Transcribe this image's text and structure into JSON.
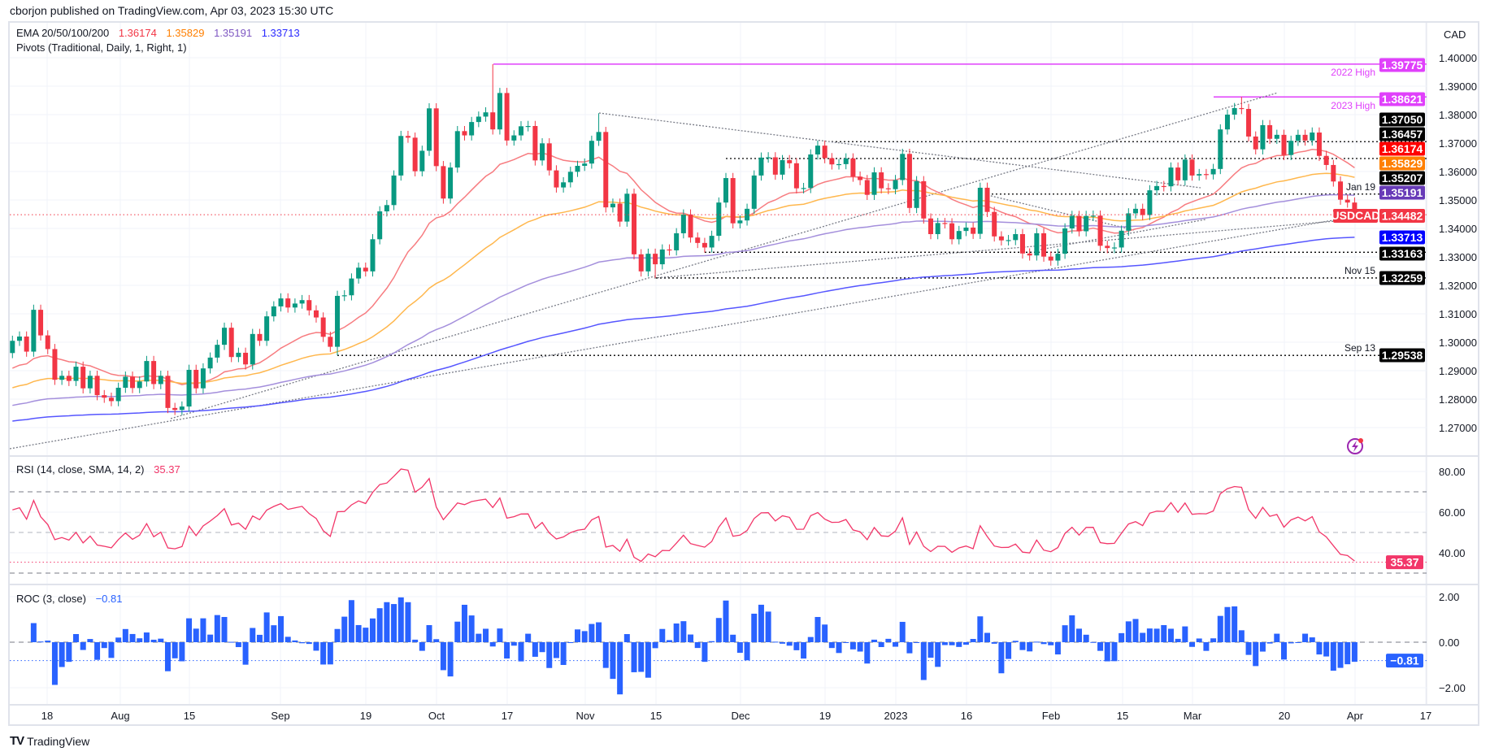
{
  "header": {
    "published": "cborjon published on TradingView.com, Apr 03, 2023 15:30 UTC"
  },
  "legend": {
    "ema_label": "EMA 20/50/100/200",
    "ema_values": [
      "1.36174",
      "1.35829",
      "1.35191",
      "1.33713"
    ],
    "pivots_label": "Pivots (Traditional, Daily, 1, Right, 1)",
    "rsi_label": "RSI (14, close, SMA, 14, 2)",
    "rsi_value": "35.37",
    "roc_label": "ROC (3, close)",
    "roc_value": "−0.81"
  },
  "symbol": "USDCAD",
  "currency": "CAD",
  "logo": "TradingView",
  "colors": {
    "up": "#089981",
    "down": "#f23645",
    "ema20": "#f77c80",
    "ema50": "#ffb74d",
    "ema100": "#a48fdc",
    "ema200": "#5656ff",
    "ema20_label": "#ff0000",
    "ema50_label": "#ff7f00",
    "ema100_label": "#673ab7",
    "ema200_label": "#0000ff",
    "highs": "#e040fb",
    "rsi": "#f23669",
    "roc": "#2962ff",
    "pivot": "#000000",
    "trend": "#787b86"
  },
  "chart_data": {
    "type": "candlestick",
    "title": "USDCAD Daily",
    "ylabel": "CAD",
    "ylim": [
      1.262,
      1.405
    ],
    "price_ticks": [
      "1.27000",
      "1.28000",
      "1.29000",
      "1.30000",
      "1.31000",
      "1.32000",
      "1.33000",
      "1.34000",
      "1.35000",
      "1.36000",
      "1.37000",
      "1.38000",
      "1.39000",
      "1.40000"
    ],
    "x_ticks": [
      "18",
      "Aug",
      "15",
      "Sep",
      "19",
      "Oct",
      "17",
      "Nov",
      "15",
      "Dec",
      "19",
      "2023",
      "16",
      "Feb",
      "15",
      "Mar",
      "20",
      "Apr",
      "17"
    ],
    "first_open": 1.2962,
    "closes": [
      1.3005,
      1.302,
      1.2967,
      1.3114,
      1.3024,
      1.2976,
      1.2868,
      1.2882,
      1.2864,
      1.2914,
      1.2838,
      1.2882,
      1.2814,
      1.2805,
      1.2793,
      1.284,
      1.2879,
      1.2839,
      1.2862,
      1.2934,
      1.2853,
      1.2882,
      1.2769,
      1.2762,
      1.2774,
      1.2903,
      1.2838,
      1.2908,
      1.2946,
      1.2991,
      1.3051,
      1.2948,
      1.2963,
      1.2922,
      1.3029,
      1.3005,
      1.3091,
      1.3126,
      1.3154,
      1.3122,
      1.3136,
      1.3148,
      1.3112,
      1.3087,
      1.3019,
      1.2984,
      1.3163,
      1.3165,
      1.3224,
      1.3262,
      1.3249,
      1.3362,
      1.346,
      1.3482,
      1.3586,
      1.3725,
      1.3719,
      1.3601,
      1.3673,
      1.3822,
      1.3619,
      1.3505,
      1.3614,
      1.3742,
      1.3727,
      1.3774,
      1.3793,
      1.3808,
      1.3748,
      1.3876,
      1.3709,
      1.3727,
      1.3759,
      1.376,
      1.3639,
      1.3699,
      1.3604,
      1.3544,
      1.3562,
      1.3599,
      1.362,
      1.3628,
      1.3708,
      1.3739,
      1.3474,
      1.3487,
      1.3424,
      1.3522,
      1.3309,
      1.3249,
      1.3311,
      1.3274,
      1.3326,
      1.3323,
      1.3383,
      1.3449,
      1.3368,
      1.3349,
      1.3333,
      1.3374,
      1.3491,
      1.3577,
      1.3418,
      1.3428,
      1.3469,
      1.3586,
      1.3649,
      1.365,
      1.3589,
      1.364,
      1.3629,
      1.3541,
      1.3542,
      1.366,
      1.3691,
      1.3647,
      1.3625,
      1.3626,
      1.3646,
      1.3582,
      1.357,
      1.3518,
      1.3597,
      1.3541,
      1.3538,
      1.357,
      1.3662,
      1.3472,
      1.3566,
      1.3435,
      1.338,
      1.3419,
      1.3418,
      1.3362,
      1.3391,
      1.3403,
      1.3381,
      1.3543,
      1.3458,
      1.3372,
      1.3358,
      1.3359,
      1.338,
      1.3312,
      1.3305,
      1.3383,
      1.3301,
      1.3287,
      1.3311,
      1.34,
      1.3444,
      1.339,
      1.3444,
      1.3445,
      1.3339,
      1.3331,
      1.3333,
      1.3392,
      1.3453,
      1.3469,
      1.3447,
      1.3534,
      1.3549,
      1.3548,
      1.3614,
      1.3569,
      1.3642,
      1.3586,
      1.3591,
      1.359,
      1.3609,
      1.3748,
      1.38,
      1.3823,
      1.382,
      1.3723,
      1.3678,
      1.3763,
      1.3715,
      1.3729,
      1.3658,
      1.3708,
      1.3729,
      1.3709,
      1.3737,
      1.3655,
      1.3623,
      1.3565,
      1.3501,
      1.3491,
      1.34482
    ],
    "high_overrides": {
      "68": 1.39775,
      "83": 1.3805,
      "174": 1.38621
    },
    "low_overrides": {
      "46": 1.29538,
      "91": 1.32259
    },
    "ema_start": {
      "ema20": 1.2909,
      "ema50": 1.284,
      "ema100": 1.2778,
      "ema200": 1.2723
    },
    "price_labels": [
      {
        "value": "1.39775",
        "kind": "high",
        "note": "2022 High"
      },
      {
        "value": "1.38621",
        "kind": "high",
        "note": "2023 High"
      },
      {
        "value": "1.37050",
        "kind": "pivot",
        "note": ""
      },
      {
        "value": "1.36457",
        "kind": "pivot",
        "note": ""
      },
      {
        "value": "1.36174",
        "kind": "ema20",
        "note": ""
      },
      {
        "value": "1.35829",
        "kind": "ema50",
        "note": ""
      },
      {
        "value": "1.35207",
        "kind": "pivot",
        "note": "Jan 19"
      },
      {
        "value": "1.35191",
        "kind": "ema100",
        "note": ""
      },
      {
        "value": "1.34482",
        "kind": "last",
        "note": ""
      },
      {
        "value": "1.33713",
        "kind": "ema200",
        "note": ""
      },
      {
        "value": "1.33163",
        "kind": "pivot",
        "note": ""
      },
      {
        "value": "1.32259",
        "kind": "pivot",
        "note": "Nov 15"
      },
      {
        "value": "1.29538",
        "kind": "pivot",
        "note": "Sep 13"
      }
    ],
    "rsi": {
      "period": 14,
      "ticks": [
        "80.00",
        "60.00",
        "40.00"
      ],
      "bands": [
        70,
        50,
        30
      ],
      "last": 35.37,
      "ylim": [
        26,
        86
      ]
    },
    "roc": {
      "period": 3,
      "ticks": [
        "2.00",
        "0.00",
        "−2.00"
      ],
      "last": -0.81,
      "ylim": [
        -2.75,
        2.6
      ]
    }
  }
}
